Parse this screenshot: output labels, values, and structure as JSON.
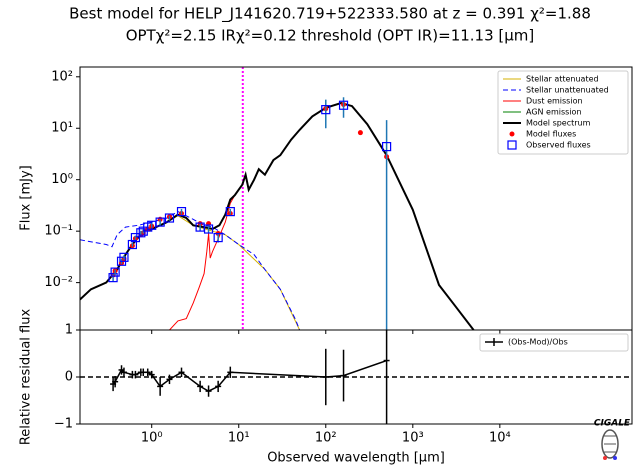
{
  "chart_data": [
    {
      "type": "line",
      "title": "Best model for HELP_J141620.719+522333.580 at z = 0.391 χ²=1.88",
      "subtitle": "OPTχ²=2.15 IRχ²=0.12 threshold (OPT IR)=11.13  [μm]",
      "ylabel": "Flux [mJy]",
      "xscale": "log",
      "yscale": "log",
      "xlim": [
        0.15,
        330000
      ],
      "ylim": [
        0.0012,
        155
      ],
      "xticks": [
        1,
        10,
        100,
        1000,
        10000
      ],
      "yticks": [
        {
          "value": 0.01,
          "label": "10⁻²"
        },
        {
          "value": 0.1,
          "label": "10⁻¹"
        },
        {
          "value": 1,
          "label": "10⁰"
        },
        {
          "value": 10,
          "label": "10¹"
        },
        {
          "value": 100,
          "label": "10²"
        }
      ],
      "vline": {
        "x": 11.13,
        "color": "#ff00ff",
        "linestyle": "dotted"
      },
      "legend": "upper right",
      "series": [
        {
          "name": "Stellar attenuated",
          "type": "line",
          "color": "#d4b200",
          "linestyle": "solid",
          "x": [
            0.15,
            0.2,
            0.3,
            0.4,
            0.5,
            0.6,
            0.8,
            1.0,
            1.5,
            2.0,
            3.0,
            5.0,
            7.0,
            10,
            20,
            30,
            50
          ],
          "values": [
            0.0047,
            0.0074,
            0.01,
            0.018,
            0.035,
            0.055,
            0.1,
            0.11,
            0.15,
            0.2,
            0.13,
            0.1,
            0.085,
            0.055,
            0.018,
            0.0074,
            0.0012
          ]
        },
        {
          "name": "Stellar unattenuated",
          "type": "line",
          "color": "#0000ff",
          "linestyle": "dashed",
          "x": [
            0.15,
            0.3,
            0.35,
            0.4,
            0.5,
            0.7,
            1.0,
            1.5,
            2.0,
            3.0,
            4.0,
            5.0,
            7.0,
            10,
            15,
            20,
            30,
            45,
            50
          ],
          "values": [
            0.068,
            0.055,
            0.05,
            0.085,
            0.12,
            0.13,
            0.15,
            0.18,
            0.24,
            0.17,
            0.13,
            0.12,
            0.085,
            0.055,
            0.035,
            0.018,
            0.0074,
            0.0019,
            0.0012
          ]
        },
        {
          "name": "Dust emission",
          "type": "line",
          "color": "#ff0000",
          "linestyle": "solid",
          "x": [
            1.6,
            2.0,
            2.5,
            3.0,
            3.5,
            4.0,
            4.3,
            4.5,
            4.7,
            5.0,
            6.0,
            7.0,
            8.0,
            9.0,
            10,
            11,
            12,
            13,
            15,
            17,
            20,
            25,
            30,
            40,
            50,
            70,
            100,
            150,
            200,
            300,
            500,
            1000,
            2000,
            3000,
            5000
          ],
          "values": [
            0.0012,
            0.0018,
            0.002,
            0.004,
            0.008,
            0.015,
            0.04,
            0.09,
            0.03,
            0.04,
            0.08,
            0.15,
            0.35,
            0.5,
            0.64,
            0.8,
            1.25,
            0.64,
            1,
            1.6,
            1.25,
            2.4,
            3,
            6,
            9.3,
            17,
            25,
            31,
            27,
            12,
            3,
            0.26,
            0.009,
            0.0037,
            0.0012
          ]
        },
        {
          "name": "AGN emission",
          "type": "line",
          "color": "#008000",
          "linestyle": "solid",
          "x": [],
          "values": []
        },
        {
          "name": "Model spectrum",
          "type": "line",
          "color": "#000000",
          "linestyle": "solid",
          "width": 2,
          "x": [
            0.15,
            0.2,
            0.3,
            0.4,
            0.5,
            0.6,
            0.8,
            1.0,
            1.5,
            2.0,
            2.5,
            3.0,
            4.0,
            5.0,
            6.0,
            7.0,
            8.0,
            9.0,
            10,
            11,
            12,
            13,
            15,
            17,
            20,
            25,
            30,
            40,
            50,
            70,
            100,
            150,
            200,
            300,
            500,
            1000,
            2000,
            3000,
            5000
          ],
          "values": [
            0.0047,
            0.0074,
            0.01,
            0.018,
            0.035,
            0.055,
            0.1,
            0.11,
            0.15,
            0.21,
            0.18,
            0.13,
            0.12,
            0.11,
            0.13,
            0.21,
            0.41,
            0.5,
            0.64,
            0.8,
            1.25,
            0.64,
            1,
            1.6,
            1.25,
            2.4,
            3,
            6,
            9.3,
            17,
            25,
            31,
            27,
            12,
            3,
            0.26,
            0.009,
            0.0037,
            0.0012
          ]
        },
        {
          "name": "Model fluxes",
          "type": "scatter",
          "marker": "circle",
          "color": "#ff0000",
          "x": [
            0.36,
            0.38,
            0.45,
            0.48,
            0.6,
            0.65,
            0.75,
            0.8,
            0.9,
            1.0,
            1.25,
            1.6,
            2.2,
            3.6,
            4.5,
            5.8,
            8.0,
            100,
            160,
            250,
            500
          ],
          "values": [
            0.014,
            0.017,
            0.024,
            0.029,
            0.052,
            0.072,
            0.085,
            0.092,
            0.11,
            0.125,
            0.17,
            0.19,
            0.22,
            0.14,
            0.14,
            0.09,
            0.22,
            24,
            29,
            8.2,
            2.8
          ]
        },
        {
          "name": "Observed fluxes",
          "type": "scatter",
          "marker": "square",
          "color": "#0000ff",
          "errorcolor": "#1f77b4",
          "x": [
            0.36,
            0.38,
            0.45,
            0.48,
            0.6,
            0.65,
            0.75,
            0.8,
            0.9,
            1.0,
            1.25,
            1.6,
            2.2,
            3.6,
            4.5,
            5.8,
            8.0,
            100,
            160,
            500
          ],
          "values": [
            0.0125,
            0.016,
            0.026,
            0.031,
            0.055,
            0.075,
            0.093,
            0.1,
            0.12,
            0.13,
            0.15,
            0.18,
            0.24,
            0.12,
            0.11,
            0.075,
            0.24,
            23,
            28,
            4.4
          ],
          "errors": [
            0.002,
            0.002,
            0.003,
            0.003,
            0.005,
            0.007,
            0.009,
            0.01,
            0.012,
            0.013,
            0.02,
            0.02,
            0.03,
            0.02,
            0.02,
            0.015,
            0.03,
            13,
            12,
            10
          ]
        }
      ]
    },
    {
      "type": "line",
      "xlabel": "Observed wavelength [μm]",
      "ylabel": "Relative residual flux",
      "xscale": "log",
      "xlim": [
        0.15,
        330000
      ],
      "ylim": [
        -1,
        1
      ],
      "xticks": [
        {
          "value": 1,
          "label": "10⁰"
        },
        {
          "value": 10,
          "label": "10¹"
        },
        {
          "value": 100,
          "label": "10²"
        },
        {
          "value": 1000,
          "label": "10³"
        },
        {
          "value": 10000,
          "label": "10⁴"
        }
      ],
      "yticks": [
        {
          "value": -1,
          "label": "−1"
        },
        0,
        1
      ],
      "hline": {
        "y": 0,
        "linestyle": "dashed",
        "color": "#000000"
      },
      "legend": "upper right",
      "series": [
        {
          "name": "(Obs-Mod)/Obs",
          "type": "errorline",
          "color": "#000000",
          "x": [
            0.36,
            0.38,
            0.45,
            0.48,
            0.6,
            0.65,
            0.75,
            0.8,
            0.9,
            1.0,
            1.25,
            1.6,
            2.2,
            3.6,
            4.5,
            5.8,
            8.0,
            100,
            160,
            500
          ],
          "values": [
            -0.15,
            -0.1,
            0.15,
            0.1,
            0.05,
            0.05,
            0.1,
            0.1,
            0.1,
            0.05,
            -0.2,
            -0.05,
            0.1,
            -0.2,
            -0.3,
            -0.2,
            0.1,
            0,
            0.03,
            0.35
          ],
          "errors": [
            0.15,
            0.12,
            0.1,
            0.1,
            0.08,
            0.08,
            0.08,
            0.08,
            0.08,
            0.08,
            0.2,
            0.1,
            0.1,
            0.12,
            0.12,
            0.12,
            0.12,
            0.6,
            0.55,
            2
          ]
        }
      ]
    }
  ],
  "logo": {
    "text": "CIGALE"
  }
}
